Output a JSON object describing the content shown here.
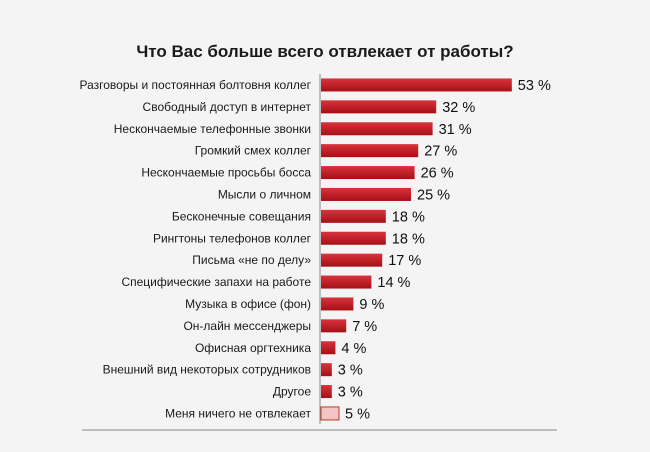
{
  "chart_data": {
    "type": "bar",
    "orientation": "horizontal",
    "title": "Что Вас больше всего отвлекает от работы?",
    "categories": [
      "Разговоры и постоянная болтовня коллег",
      "Свободный доступ в интернет",
      "Нескончаемые телефонные звонки",
      "Громкий смех коллег",
      "Нескончаемые просьбы босса",
      "Мысли о личном",
      "Бесконечные совещания",
      "Рингтоны телефонов коллег",
      "Письма «не по делу»",
      "Специфические запахи на работе",
      "Музыка в офисе (фон)",
      "Он-лайн мессенджеры",
      "Офисная оргтехника",
      "Внешний вид некоторых сотрудников",
      "Другое",
      "Меня ничего не отвлекает"
    ],
    "values": [
      53,
      32,
      31,
      27,
      26,
      25,
      18,
      18,
      17,
      14,
      9,
      7,
      4,
      3,
      3,
      5
    ],
    "value_labels": [
      "53 %",
      "32 %",
      "31 %",
      "27 %",
      "26 %",
      "25 %",
      "18 %",
      "18 %",
      "17 %",
      "14 %",
      "9 %",
      "7 %",
      "4 %",
      "3 %",
      "3 %",
      "5 %"
    ],
    "unit": "%",
    "colors": {
      "bar": "#b5121b",
      "bar_highlight": "#d9333b",
      "bar_last": "#f2c4c4",
      "bar_last_border": "#c0392b",
      "axis": "#888888"
    },
    "grid": false,
    "legend": "none"
  }
}
